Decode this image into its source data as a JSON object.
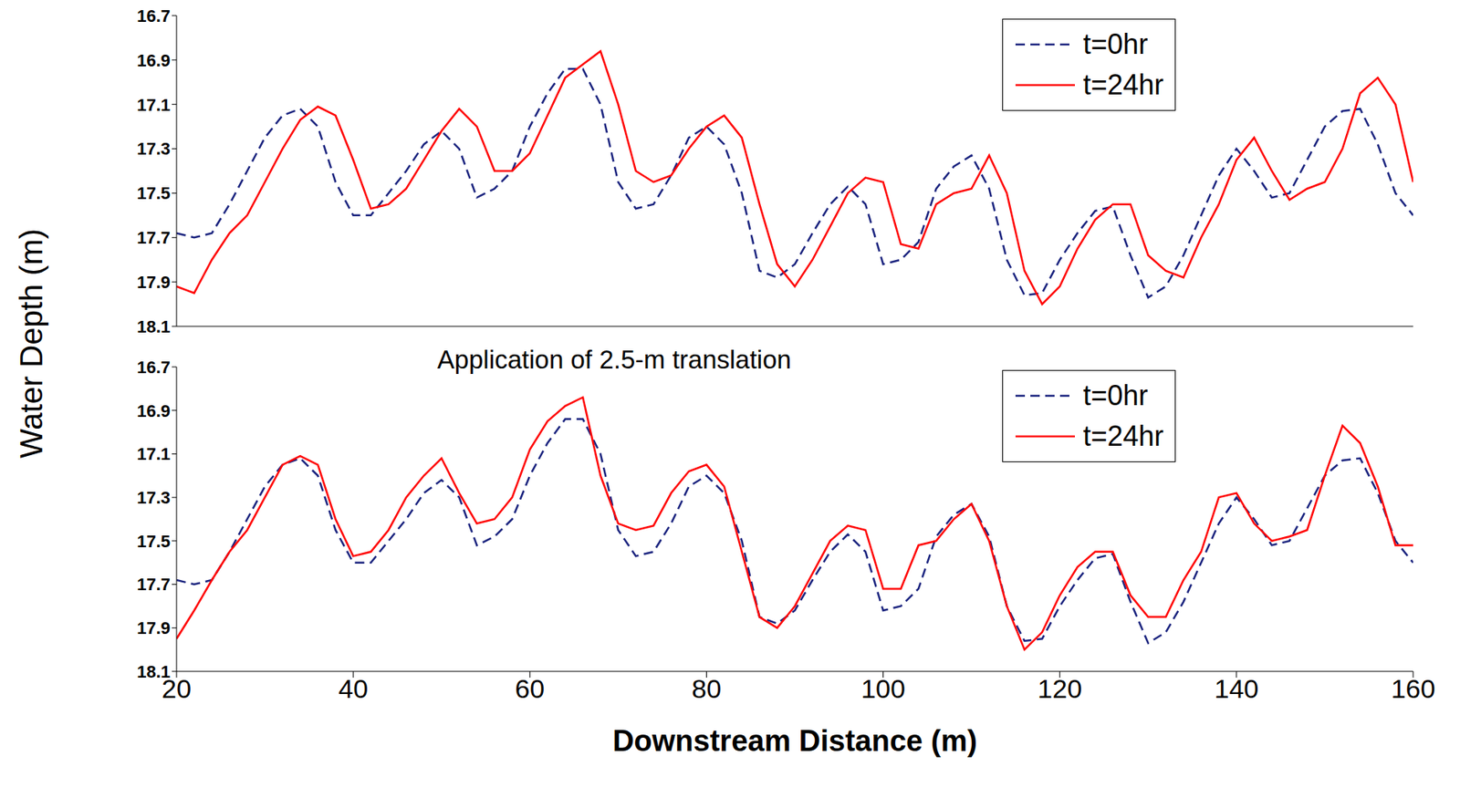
{
  "chart_data": [
    {
      "type": "line",
      "ylabel": "Water Depth (m)",
      "x": [
        20,
        22,
        24,
        26,
        28,
        30,
        32,
        34,
        36,
        38,
        40,
        42,
        44,
        46,
        48,
        50,
        52,
        54,
        56,
        58,
        60,
        62,
        64,
        66,
        68,
        70,
        72,
        74,
        76,
        78,
        80,
        82,
        84,
        86,
        88,
        90,
        92,
        94,
        96,
        98,
        100,
        102,
        104,
        106,
        108,
        110,
        112,
        114,
        116,
        118,
        120,
        122,
        124,
        126,
        128,
        130,
        132,
        134,
        136,
        138,
        140,
        142,
        144,
        146,
        148,
        150,
        152,
        154,
        156,
        158,
        160
      ],
      "series": [
        {
          "name": "t=0hr",
          "color": "#1a237e",
          "line_style": "dashed",
          "values": [
            17.68,
            17.7,
            17.68,
            17.55,
            17.4,
            17.25,
            17.15,
            17.12,
            17.2,
            17.45,
            17.6,
            17.6,
            17.5,
            17.4,
            17.28,
            17.22,
            17.3,
            17.52,
            17.48,
            17.4,
            17.2,
            17.05,
            16.94,
            16.94,
            17.1,
            17.45,
            17.57,
            17.55,
            17.42,
            17.25,
            17.2,
            17.28,
            17.5,
            17.85,
            17.88,
            17.82,
            17.68,
            17.55,
            17.47,
            17.55,
            17.82,
            17.8,
            17.72,
            17.48,
            17.38,
            17.33,
            17.48,
            17.8,
            17.96,
            17.95,
            17.8,
            17.68,
            17.58,
            17.56,
            17.78,
            17.97,
            17.92,
            17.78,
            17.6,
            17.42,
            17.3,
            17.4,
            17.52,
            17.5,
            17.35,
            17.2,
            17.13,
            17.12,
            17.28,
            17.5,
            17.6
          ]
        },
        {
          "name": "t=24hr",
          "color": "#ff0000",
          "line_style": "solid",
          "values": [
            17.92,
            17.95,
            17.8,
            17.68,
            17.6,
            17.45,
            17.3,
            17.17,
            17.11,
            17.15,
            17.35,
            17.57,
            17.55,
            17.48,
            17.35,
            17.22,
            17.12,
            17.2,
            17.4,
            17.4,
            17.32,
            17.15,
            16.98,
            16.92,
            16.86,
            17.1,
            17.4,
            17.45,
            17.42,
            17.3,
            17.2,
            17.15,
            17.25,
            17.55,
            17.82,
            17.92,
            17.8,
            17.65,
            17.5,
            17.43,
            17.45,
            17.73,
            17.75,
            17.55,
            17.5,
            17.48,
            17.33,
            17.5,
            17.85,
            18.0,
            17.92,
            17.75,
            17.62,
            17.55,
            17.55,
            17.78,
            17.85,
            17.88,
            17.7,
            17.55,
            17.35,
            17.25,
            17.4,
            17.53,
            17.48,
            17.45,
            17.3,
            17.05,
            16.98,
            17.1,
            17.45
          ]
        }
      ],
      "xlim": [
        20,
        160
      ],
      "xticks": [
        20,
        40,
        60,
        80,
        100,
        120,
        140,
        160
      ],
      "ylim": [
        18.1,
        16.7
      ],
      "yticks": [
        16.7,
        16.9,
        17.1,
        17.3,
        17.5,
        17.7,
        17.9,
        18.1
      ],
      "legend": "upper right",
      "tick_labels": "y"
    },
    {
      "type": "line",
      "annotation": "Application of 2.5-m translation",
      "xlabel": "Downstream Distance (m)",
      "x": [
        20,
        22,
        24,
        26,
        28,
        30,
        32,
        34,
        36,
        38,
        40,
        42,
        44,
        46,
        48,
        50,
        52,
        54,
        56,
        58,
        60,
        62,
        64,
        66,
        68,
        70,
        72,
        74,
        76,
        78,
        80,
        82,
        84,
        86,
        88,
        90,
        92,
        94,
        96,
        98,
        100,
        102,
        104,
        106,
        108,
        110,
        112,
        114,
        116,
        118,
        120,
        122,
        124,
        126,
        128,
        130,
        132,
        134,
        136,
        138,
        140,
        142,
        144,
        146,
        148,
        150,
        152,
        154,
        156,
        158,
        160
      ],
      "series": [
        {
          "name": "t=0hr",
          "color": "#1a237e",
          "line_style": "dashed",
          "values": [
            17.68,
            17.7,
            17.68,
            17.55,
            17.4,
            17.25,
            17.15,
            17.12,
            17.2,
            17.45,
            17.6,
            17.6,
            17.5,
            17.4,
            17.28,
            17.22,
            17.3,
            17.52,
            17.48,
            17.4,
            17.2,
            17.05,
            16.94,
            16.94,
            17.1,
            17.45,
            17.57,
            17.55,
            17.42,
            17.25,
            17.2,
            17.28,
            17.5,
            17.85,
            17.88,
            17.82,
            17.68,
            17.55,
            17.47,
            17.55,
            17.82,
            17.8,
            17.72,
            17.48,
            17.38,
            17.33,
            17.48,
            17.8,
            17.96,
            17.95,
            17.8,
            17.68,
            17.58,
            17.56,
            17.78,
            17.97,
            17.92,
            17.78,
            17.6,
            17.42,
            17.3,
            17.4,
            17.52,
            17.5,
            17.35,
            17.2,
            17.13,
            17.12,
            17.28,
            17.5,
            17.6
          ]
        },
        {
          "name": "t=24hr",
          "color": "#ff0000",
          "line_style": "solid",
          "values": [
            17.95,
            17.82,
            17.68,
            17.55,
            17.45,
            17.3,
            17.15,
            17.11,
            17.15,
            17.4,
            17.57,
            17.55,
            17.45,
            17.3,
            17.2,
            17.12,
            17.28,
            17.42,
            17.4,
            17.3,
            17.08,
            16.95,
            16.88,
            16.84,
            17.2,
            17.42,
            17.45,
            17.43,
            17.28,
            17.18,
            17.15,
            17.25,
            17.55,
            17.85,
            17.9,
            17.8,
            17.65,
            17.5,
            17.43,
            17.45,
            17.72,
            17.72,
            17.52,
            17.5,
            17.4,
            17.33,
            17.5,
            17.8,
            18.0,
            17.92,
            17.75,
            17.62,
            17.55,
            17.55,
            17.75,
            17.85,
            17.85,
            17.68,
            17.55,
            17.3,
            17.28,
            17.42,
            17.5,
            17.48,
            17.45,
            17.2,
            16.97,
            17.05,
            17.25,
            17.52,
            17.52
          ]
        }
      ],
      "xlim": [
        20,
        160
      ],
      "xticks": [
        20,
        40,
        60,
        80,
        100,
        120,
        140,
        160
      ],
      "ylim": [
        18.1,
        16.7
      ],
      "yticks": [
        16.7,
        16.9,
        17.1,
        17.3,
        17.5,
        17.7,
        17.9,
        18.1
      ],
      "legend": "upper right",
      "tick_labels": true
    }
  ]
}
